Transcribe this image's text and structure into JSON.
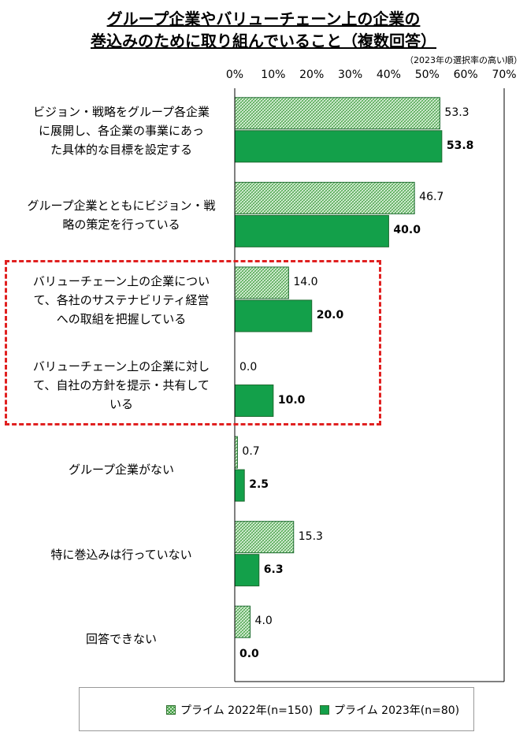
{
  "title_line1": "グループ企業やバリューチェーン上の企業の",
  "title_line2": "巻込みのために取り組んでいること（複数回答）",
  "sort_note": "（2023年の選択率の高い順）",
  "colors": {
    "s2022_fill": "#d9f0d9",
    "s2022_hatch": "#3a9a3a",
    "s2023_fill": "#13a04a",
    "highlight": "#e02020"
  },
  "chart_data": {
    "type": "bar",
    "orientation": "horizontal",
    "xlim": [
      0,
      70
    ],
    "xticks": [
      "0%",
      "10%",
      "20%",
      "30%",
      "40%",
      "50%",
      "60%",
      "70%"
    ],
    "grid": false,
    "legend_position": "bottom",
    "categories": [
      [
        "ビジョン・戦略をグループ各企業",
        "に展開し、各企業の事業にあっ",
        "た具体的な目標を設定する"
      ],
      [
        "グループ企業とともにビジョン・戦",
        "略の策定を行っている"
      ],
      [
        "バリューチェーン上の企業につい",
        "て、各社のサステナビリティ経営",
        "への取組を把握している"
      ],
      [
        "バリューチェーン上の企業に対し",
        "て、自社の方針を提示・共有して",
        "いる"
      ],
      [
        "グループ企業がない"
      ],
      [
        "特に巻込みは行っていない"
      ],
      [
        "回答できない"
      ]
    ],
    "series": [
      {
        "name": "プライム 2022年(n=150)",
        "values": [
          53.3,
          46.7,
          14.0,
          0.0,
          0.7,
          15.3,
          4.0
        ],
        "labels": [
          "53.3",
          "46.7",
          "14.0",
          "0.0",
          "0.7",
          "15.3",
          "4.0"
        ]
      },
      {
        "name": "プライム 2023年(n=80)",
        "values": [
          53.8,
          40.0,
          20.0,
          10.0,
          2.5,
          6.3,
          0.0
        ],
        "labels": [
          "53.8",
          "40.0",
          "20.0",
          "10.0",
          "2.5",
          "6.3",
          "0.0"
        ]
      }
    ],
    "highlighted_categories": [
      2,
      3
    ]
  }
}
